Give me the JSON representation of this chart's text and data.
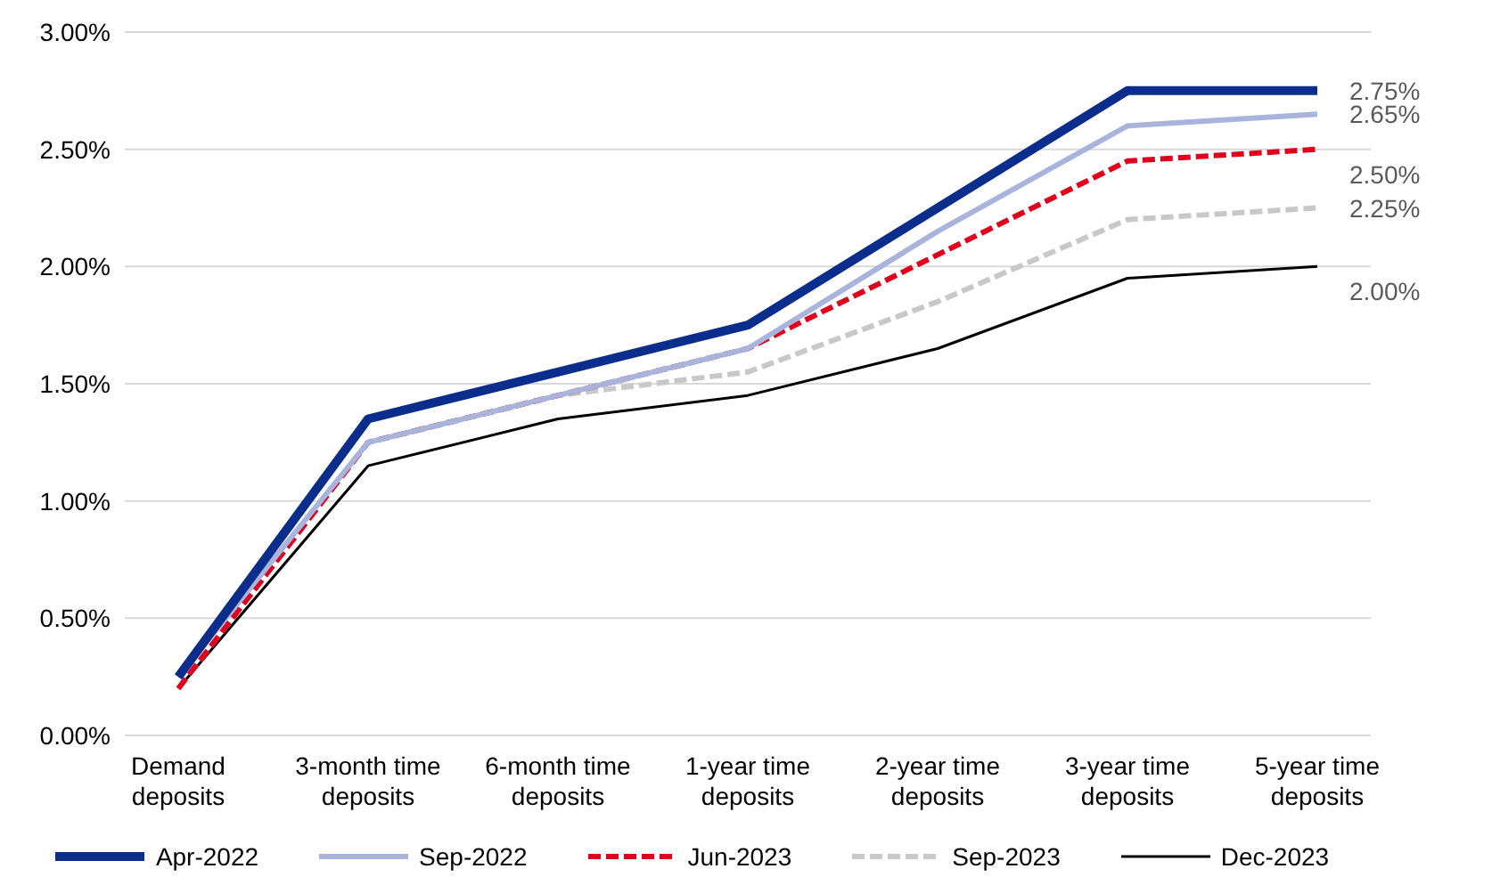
{
  "chart_data": {
    "type": "line",
    "categories": [
      "Demand deposits",
      "3-month time deposits",
      "6-month time deposits",
      "1-year time deposits",
      "2-year time deposits",
      "3-year time deposits",
      "5-year time deposits"
    ],
    "series": [
      {
        "name": "Apr-2022",
        "color": "#0b2d8c",
        "values": [
          0.25,
          1.35,
          1.55,
          1.75,
          2.25,
          2.75,
          2.75
        ],
        "value_labels": [
          null,
          null,
          null,
          null,
          null,
          null,
          "2.75%"
        ]
      },
      {
        "name": "Sep-2022",
        "color": "#a9b4dc",
        "values": [
          0.25,
          1.25,
          1.45,
          1.65,
          2.15,
          2.6,
          2.65
        ],
        "value_labels": [
          null,
          null,
          null,
          null,
          null,
          null,
          "2.65%"
        ]
      },
      {
        "name": "Jun-2023",
        "color": "#e0001b",
        "line_style": "dashed",
        "values": [
          0.2,
          1.25,
          1.45,
          1.65,
          2.05,
          2.45,
          2.5
        ],
        "value_labels": [
          null,
          null,
          null,
          null,
          null,
          null,
          "2.50%"
        ]
      },
      {
        "name": "Sep-2023",
        "color": "#c8c8c8",
        "line_style": "dashed",
        "values": [
          0.2,
          1.25,
          1.45,
          1.55,
          1.85,
          2.2,
          2.25
        ],
        "value_labels": [
          null,
          null,
          null,
          null,
          null,
          null,
          "2.25%"
        ]
      },
      {
        "name": "Dec-2023",
        "color": "#000000",
        "values": [
          0.2,
          1.15,
          1.35,
          1.45,
          1.65,
          1.95,
          2.0
        ],
        "value_labels": [
          null,
          null,
          null,
          null,
          null,
          null,
          "2.00%"
        ]
      }
    ],
    "ylim": [
      0,
      3
    ],
    "yticks": [
      {
        "value": 0,
        "label": "0.00%"
      },
      {
        "value": 0.5,
        "label": "0.50%"
      },
      {
        "value": 1,
        "label": "1.00%"
      },
      {
        "value": 1.5,
        "label": "1.50%"
      },
      {
        "value": 2,
        "label": "2.00%"
      },
      {
        "value": 2.5,
        "label": "2.50%"
      },
      {
        "value": 3,
        "label": "3.00%"
      }
    ],
    "grid": "y",
    "legend": "bottom",
    "marker": "none"
  }
}
